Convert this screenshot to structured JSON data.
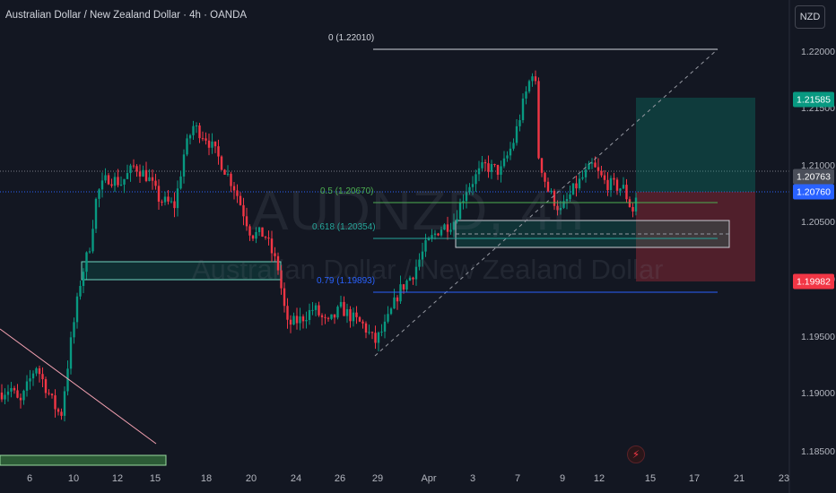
{
  "title": "Australian Dollar / New Zealand Dollar · 4h · OANDA",
  "currency_button": "NZD",
  "watermark": {
    "symbol": "AUDNZD, 4h",
    "name": "Australian Dollar / New Zealand Dollar"
  },
  "price_axis": [
    "1.22000",
    "1.21500",
    "1.21000",
    "1.20500",
    "1.20000",
    "1.19500",
    "1.19000",
    "1.18500"
  ],
  "price_badges": [
    {
      "text": "1.21585",
      "color": "#089981"
    },
    {
      "text": "1.20763",
      "color": "#4a4e59"
    },
    {
      "text": "1.20760",
      "color": "#2962ff"
    },
    {
      "text": "1.19982",
      "color": "#f23645"
    }
  ],
  "time_axis": [
    "6",
    "10",
    "12",
    "15",
    "18",
    "20",
    "24",
    "26",
    "29",
    "Apr",
    "3",
    "7",
    "9",
    "12",
    "15",
    "17",
    "21",
    "23"
  ],
  "fib_labels": [
    {
      "text": "0 (1.22010)",
      "color": "#d1d4dc"
    },
    {
      "text": "0.5 (1.20670)",
      "color": "#4caf50"
    },
    {
      "text": "0.618 (1.20354)",
      "color": "#26a69a"
    },
    {
      "text": "0.79 (1.19893)",
      "color": "#2962ff"
    }
  ],
  "colors": {
    "up": "#089981",
    "down": "#f23645",
    "background": "#131722"
  },
  "icons": {
    "alert": "lightning-icon"
  }
}
